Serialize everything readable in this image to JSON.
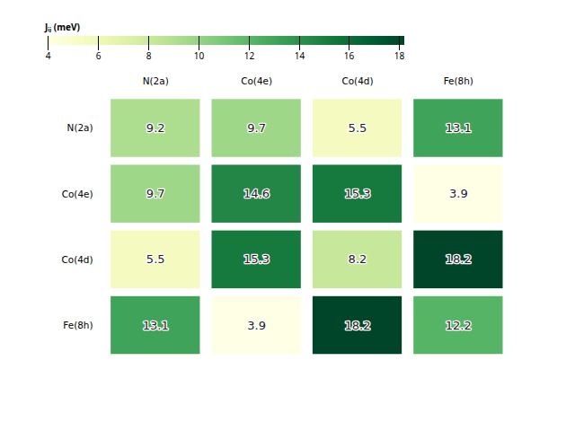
{
  "chart_data": {
    "type": "heatmap",
    "categories": [
      "N(2a)",
      "Co(4e)",
      "Co(4d)",
      "Fe(8h)"
    ],
    "values": [
      [
        9.2,
        9.7,
        5.5,
        13.1
      ],
      [
        9.7,
        14.6,
        15.3,
        3.9
      ],
      [
        5.5,
        15.3,
        8.2,
        18.2
      ],
      [
        13.1,
        3.9,
        18.2,
        12.2
      ]
    ],
    "color": "YlGn",
    "colorbar_label": "Jᵢⱼ (meV)",
    "colorbar_range": [
      3.9,
      18.2
    ],
    "colorbar_ticks": [
      4,
      6,
      8,
      10,
      12,
      14,
      16,
      18
    ],
    "data_labels": true
  }
}
